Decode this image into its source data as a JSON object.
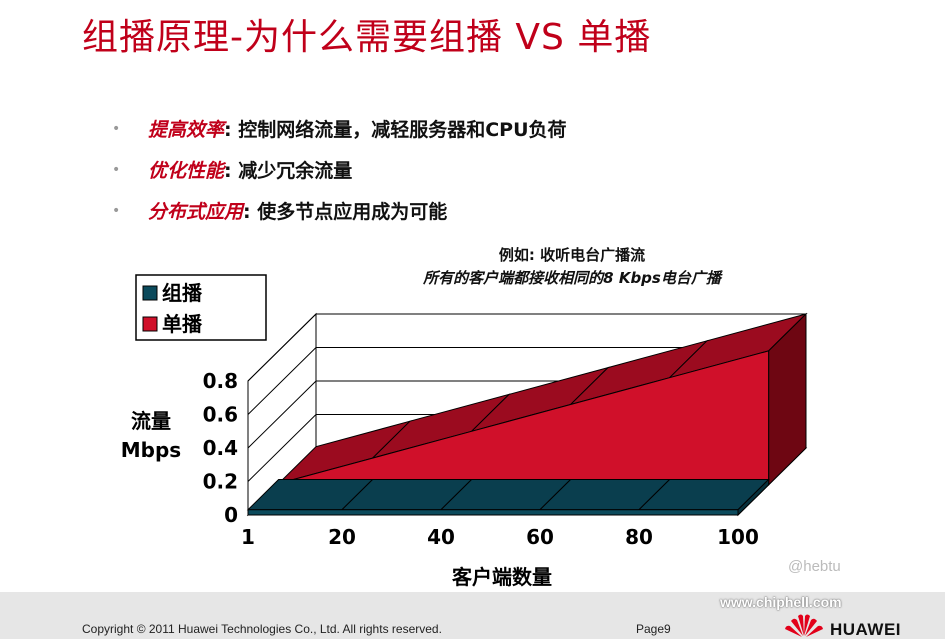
{
  "slide": {
    "title": "组播原理-为什么需要组播 VS 单播",
    "bullets": [
      {
        "key": "提高效率",
        "text": " : 控制网络流量，减轻服务器和CPU负荷"
      },
      {
        "key": "优化性能",
        "text": " : 减少冗余流量"
      },
      {
        "key": "分布式应用",
        "text": " : 使多节点应用成为可能"
      }
    ]
  },
  "chart_note": {
    "line1": "例如: 收听电台广播流",
    "line2": "所有的客户端都接收相同的8 Kbps电台广播"
  },
  "chart_data": {
    "type": "area",
    "x": [
      1,
      20,
      40,
      60,
      80,
      100
    ],
    "xlabel": "客户端数量",
    "ylabel_line1": "流量",
    "ylabel_line2": "Mbps",
    "ylim": [
      0,
      0.8
    ],
    "yticks": [
      "0",
      "0.2",
      "0.4",
      "0.6",
      "0.8"
    ],
    "xticks": [
      "1",
      "20",
      "40",
      "60",
      "80",
      "100"
    ],
    "legend_position": "top-left",
    "series": [
      {
        "name": "组播",
        "values": [
          0.008,
          0.008,
          0.008,
          0.008,
          0.008,
          0.008
        ],
        "color": "#0b4a5c"
      },
      {
        "name": "单播",
        "values": [
          0.008,
          0.16,
          0.32,
          0.48,
          0.64,
          0.8
        ],
        "color": "#d0102a"
      }
    ],
    "depth_colors": {
      "multicast_top": "#0a3e4e",
      "unicast_top": "#9b0b1f",
      "unicast_side": "#6e0612"
    }
  },
  "footer": {
    "copyright": "Copyright © 2011 Huawei Technologies Co., Ltd. All rights reserved.",
    "page": "Page9",
    "brand": "HUAWEI"
  },
  "watermark": {
    "handle": "@hebtu",
    "url": "www.chiphell.com",
    "logo": "chip hell"
  }
}
